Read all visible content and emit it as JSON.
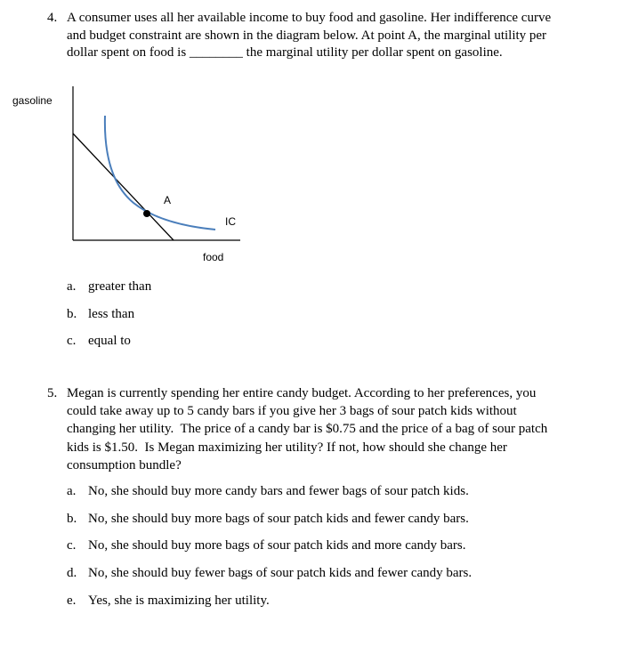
{
  "questions": [
    {
      "number": "4.",
      "lines": [
        "A consumer uses all her available income to buy food and gasoline. Her indifference curve",
        "and budget constraint are shown in the diagram below. At point A, the marginal utility per",
        "dollar spent on food is ________ the marginal utility per dollar spent on gasoline."
      ],
      "diagram": {
        "y_label": "gasoline",
        "x_label": "food",
        "point_label": "A",
        "curve_label": "IC"
      },
      "options": [
        {
          "letter": "a.",
          "text": "greater than"
        },
        {
          "letter": "b.",
          "text": "less than"
        },
        {
          "letter": "c.",
          "text": "equal to"
        }
      ]
    },
    {
      "number": "5.",
      "lines": [
        "Megan is currently spending her entire candy budget. According to her preferences, you",
        "could take away up to 5 candy bars if you give her 3 bags of sour patch kids without",
        "changing her utility.  The price of a candy bar is $0.75 and the price of a bag of sour patch",
        "kids is $1.50.  Is Megan maximizing her utility? If not, how should she change her",
        "consumption bundle?"
      ],
      "options": [
        {
          "letter": "a.",
          "text": "No, she should buy more candy bars and fewer bags of sour patch kids."
        },
        {
          "letter": "b.",
          "text": "No, she should buy more bags of sour patch kids and fewer candy bars."
        },
        {
          "letter": "c.",
          "text": "No, she should buy more bags of sour patch kids and more candy bars."
        },
        {
          "letter": "d.",
          "text": "No, she should buy fewer bags of sour patch kids and fewer candy bars."
        },
        {
          "letter": "e.",
          "text": "Yes, she is maximizing her utility."
        }
      ]
    }
  ]
}
